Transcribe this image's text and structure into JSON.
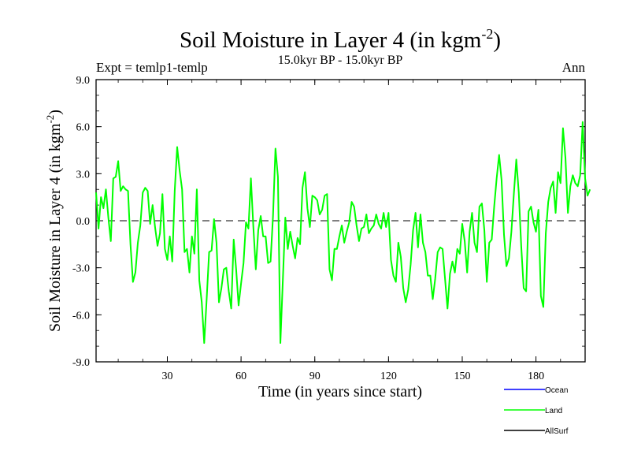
{
  "chart_data": {
    "type": "line",
    "title": "Soil Moisture in Layer 4 (in kgm",
    "title_sup": "-2",
    "title_close": ")",
    "subtitle": "15.0kyr BP - 15.0kyr BP",
    "left_caption": "Expt = temlp1-temlp",
    "right_caption": "Ann",
    "xlabel": "Time (in years since start)",
    "ylabel": "Soil Moisture in Layer 4 (in kgm",
    "ylabel_sup": "-2",
    "ylabel_close": ")",
    "xlim": [
      1,
      200
    ],
    "ylim": [
      -9,
      9
    ],
    "x_ticks": [
      30,
      60,
      90,
      120,
      150,
      180
    ],
    "x_tick_labels": [
      "30",
      "60",
      "90",
      "120",
      "150",
      "180"
    ],
    "y_ticks": [
      -9,
      -6,
      -3,
      0,
      3,
      6,
      9
    ],
    "y_tick_labels": [
      "-9.0",
      "-6.0",
      "-3.0",
      "0.0",
      "3.0",
      "6.0",
      "9.0"
    ],
    "zero_line": 0,
    "legend": [
      {
        "name": "Ocean",
        "color": "#0000ff"
      },
      {
        "name": "Land",
        "color": "#00ff00"
      },
      {
        "name": "AllSurf",
        "color": "#000000"
      }
    ],
    "series": [
      {
        "name": "Land",
        "color": "#00ff00",
        "x_start": 1,
        "x_step": 1,
        "values": [
          1.8,
          -0.5,
          1.5,
          0.8,
          2.0,
          0.2,
          -1.3,
          2.7,
          2.8,
          3.8,
          1.9,
          2.2,
          2.0,
          1.9,
          -1.5,
          -3.9,
          -3.3,
          -1.4,
          -0.3,
          1.8,
          2.1,
          1.9,
          -0.2,
          1.0,
          -0.4,
          -1.6,
          -0.8,
          1.7,
          -1.8,
          -2.5,
          -1.0,
          -2.6,
          1.9,
          4.7,
          3.2,
          2.0,
          -2.0,
          -1.8,
          -3.3,
          -1.0,
          -2.1,
          2.0,
          -3.8,
          -5.2,
          -7.8,
          -5.0,
          -2.0,
          -1.9,
          0.1,
          -1.4,
          -5.2,
          -4.3,
          -3.1,
          -3.0,
          -4.5,
          -5.6,
          -1.2,
          -3.1,
          -5.4,
          -4.0,
          -2.7,
          -0.1,
          -0.5,
          2.7,
          -0.4,
          -3.1,
          -0.6,
          0.3,
          -1.0,
          -1.0,
          -2.7,
          -2.6,
          0.3,
          4.6,
          2.8,
          -7.8,
          -3.8,
          0.2,
          -1.8,
          -0.7,
          -1.6,
          -2.4,
          -1.1,
          -1.5,
          2.1,
          3.1,
          0.8,
          -0.4,
          1.6,
          1.5,
          1.3,
          0.4,
          0.7,
          1.6,
          1.7,
          -3.1,
          -3.8,
          -1.8,
          -1.8,
          -1.0,
          -0.3,
          -1.4,
          -0.7,
          -0.1,
          1.2,
          0.9,
          -0.3,
          -1.3,
          -0.5,
          -0.4,
          0.4,
          -0.8,
          -0.5,
          -0.3,
          0.4,
          -0.2,
          -0.5,
          0.5,
          -0.4,
          0.5,
          -2.5,
          -3.5,
          -3.9,
          -1.4,
          -2.3,
          -4.3,
          -5.2,
          -4.4,
          -2.8,
          -0.6,
          0.5,
          -1.7,
          0.4,
          -1.4,
          -2.0,
          -3.5,
          -3.5,
          -5.0,
          -3.7,
          -2.0,
          -1.7,
          -1.8,
          -3.7,
          -5.6,
          -3.4,
          -2.6,
          -3.3,
          -1.8,
          -2.1,
          -0.2,
          -1.3,
          -3.3,
          -0.7,
          0.5,
          -1.4,
          -2.0,
          0.9,
          1.1,
          -0.6,
          -3.9,
          -1.4,
          -1.2,
          0.9,
          2.7,
          4.2,
          2.6,
          -0.9,
          -2.9,
          -2.4,
          -0.7,
          1.7,
          3.9,
          1.8,
          -1.6,
          -4.3,
          -4.5,
          0.6,
          0.9,
          -0.1,
          -0.7,
          0.7,
          -4.8,
          -5.5,
          -0.8,
          1.2,
          2.1,
          2.5,
          0.5,
          3.1,
          2.4,
          5.9,
          4.0,
          0.5,
          2.2,
          2.9,
          2.4,
          2.2,
          2.9,
          6.3,
          2.7,
          1.6,
          2.0
        ]
      }
    ]
  }
}
